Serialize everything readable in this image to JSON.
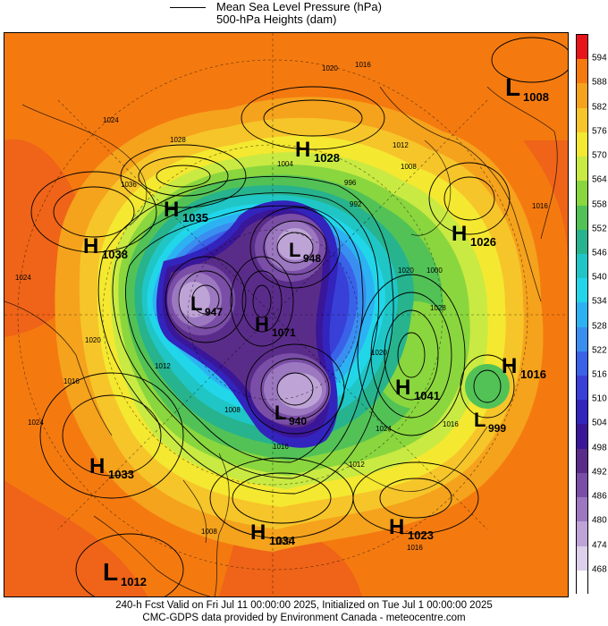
{
  "legend": {
    "line_label": "Mean Sea Level Pressure (hPa)",
    "fill_label": "500-hPa Heights (dam)"
  },
  "colorbar": {
    "levels": [
      "594",
      "588",
      "582",
      "576",
      "570",
      "564",
      "558",
      "552",
      "546",
      "540",
      "534",
      "528",
      "522",
      "516",
      "510",
      "504",
      "498",
      "492",
      "486",
      "480",
      "474",
      "468"
    ],
    "colors": [
      "#e8141c",
      "#f47a10",
      "#f5a21c",
      "#f6c52a",
      "#f4e830",
      "#c9ea42",
      "#8ad63e",
      "#52c257",
      "#27b38d",
      "#20c6c6",
      "#22d6ea",
      "#2cb2f2",
      "#3a8ef0",
      "#3a62e8",
      "#3840d8",
      "#3224bc",
      "#3a1698",
      "#5a2c8a",
      "#7a4ea6",
      "#9c78c0",
      "#bea4d6",
      "#ddd0ea",
      "#ffffff"
    ]
  },
  "systems": [
    {
      "type": "L",
      "value": "1008"
    },
    {
      "type": "H",
      "value": "1028"
    },
    {
      "type": "H",
      "value": "1035"
    },
    {
      "type": "H",
      "value": "1038"
    },
    {
      "type": "L",
      "value": "948"
    },
    {
      "type": "H",
      "value": "1026"
    },
    {
      "type": "L",
      "value": "947"
    },
    {
      "type": "H",
      "value": "1071"
    },
    {
      "type": "H",
      "value": "1016"
    },
    {
      "type": "H",
      "value": "1041"
    },
    {
      "type": "L",
      "value": "940"
    },
    {
      "type": "L",
      "value": "999"
    },
    {
      "type": "H",
      "value": "1033"
    },
    {
      "type": "H",
      "value": "1034"
    },
    {
      "type": "H",
      "value": "1023"
    },
    {
      "type": "L",
      "value": "1012"
    }
  ],
  "isobar_labels": [
    "1020",
    "1016",
    "1024",
    "1028",
    "1012",
    "1004",
    "996",
    "992",
    "1008",
    "1000",
    "1016",
    "1028",
    "1036",
    "1024",
    "1020",
    "1012",
    "1008",
    "1016",
    "1016",
    "1024",
    "1028",
    "1016",
    "1024",
    "1016",
    "1020",
    "1012",
    "1008",
    "1020"
  ],
  "footer": {
    "line1": "240-h Fcst Valid on Fri Jul 11 00:00:00 2025, Initialized on Tue Jul  1 00:00:00 2025",
    "line2": "CMC-GDPS data provided by Environment Canada - meteocentre.com"
  }
}
